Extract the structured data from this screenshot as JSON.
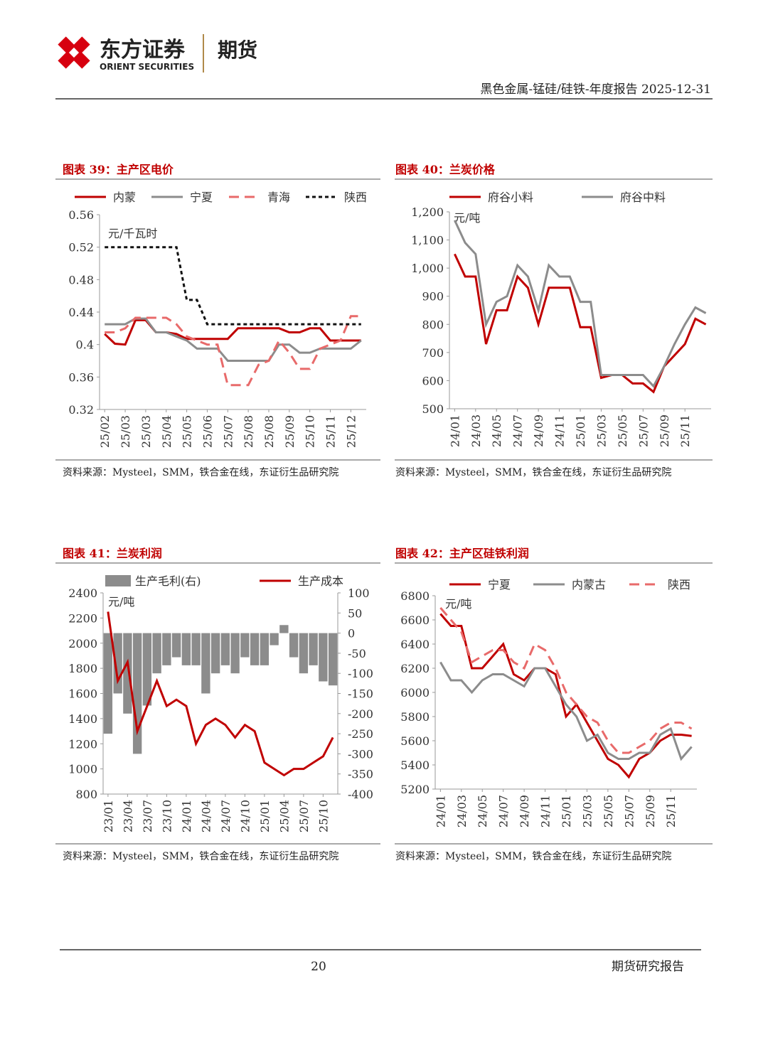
{
  "header": {
    "brand": "东方证券",
    "brand_en": "ORIENT SECURITIES",
    "unit": "期货",
    "report": "黑色金属-锰硅/硅铁-年度报告 2025-12-31"
  },
  "chart_data": [
    {
      "type": "line",
      "title": "图表 39：主产区电价",
      "source": "资料来源：Mysteel，SMM，铁合金在线，东证衍生品研究院",
      "y_unit": "元/千瓦时",
      "categories": [
        "25/02",
        null,
        "25/03",
        null,
        "25/03",
        null,
        "25/04",
        null,
        "25/05",
        null,
        "25/06",
        null,
        "25/07",
        null,
        "25/08",
        null,
        "25/08",
        null,
        "25/09",
        null,
        "25/10",
        null,
        "25/11",
        null,
        "25/12",
        null
      ],
      "ylim": [
        0.32,
        0.56
      ],
      "yticks": [
        0.32,
        0.36,
        0.4,
        0.44,
        0.48,
        0.52,
        0.56
      ],
      "series": [
        {
          "name": "内蒙",
          "color": "#c00000",
          "line_style": "solid",
          "values": [
            0.413,
            0.401,
            0.4,
            0.43,
            0.43,
            0.415,
            0.415,
            0.413,
            0.407,
            0.407,
            0.407,
            0.407,
            0.407,
            0.42,
            0.42,
            0.42,
            0.42,
            0.42,
            0.415,
            0.415,
            0.42,
            0.42,
            0.405,
            0.405,
            0.405,
            0.405
          ]
        },
        {
          "name": "宁夏",
          "color": "#8c8c8c",
          "line_style": "solid",
          "values": [
            0.425,
            0.425,
            0.425,
            0.432,
            0.432,
            0.415,
            0.415,
            0.41,
            0.405,
            0.395,
            0.395,
            0.395,
            0.38,
            0.38,
            0.38,
            0.38,
            0.38,
            0.4,
            0.4,
            0.39,
            0.39,
            0.395,
            0.395,
            0.395,
            0.395,
            0.405
          ]
        },
        {
          "name": "青海",
          "color": "#e86a6a",
          "line_style": "dashed",
          "values": [
            0.415,
            0.415,
            0.42,
            0.433,
            0.433,
            0.433,
            0.433,
            0.425,
            0.41,
            0.405,
            0.4,
            0.4,
            0.35,
            0.35,
            0.35,
            0.375,
            0.38,
            0.405,
            0.39,
            0.37,
            0.37,
            0.395,
            0.4,
            0.405,
            0.435,
            0.435
          ]
        },
        {
          "name": "陕西",
          "color": "#111111",
          "line_style": "dotted",
          "values": [
            0.52,
            0.52,
            0.52,
            0.52,
            0.52,
            0.52,
            0.52,
            0.52,
            0.455,
            0.455,
            0.425,
            0.425,
            0.425,
            0.425,
            0.425,
            0.425,
            0.425,
            0.425,
            0.425,
            0.425,
            0.425,
            0.425,
            0.425,
            0.425,
            0.425,
            0.425
          ]
        }
      ]
    },
    {
      "type": "line",
      "title": "图表 40：兰炭价格",
      "source": "资料来源：Mysteel，SMM，铁合金在线，东证衍生品研究院",
      "y_unit": "元/吨",
      "categories": [
        "24/01",
        null,
        "24/03",
        null,
        "24/05",
        null,
        "24/07",
        null,
        "24/09",
        null,
        "24/11",
        null,
        "25/01",
        null,
        "25/03",
        null,
        "25/05",
        null,
        "25/07",
        null,
        "25/09",
        null,
        "25/11",
        null,
        null
      ],
      "ylim": [
        500,
        1200
      ],
      "yticks": [
        500,
        600,
        700,
        800,
        900,
        {
          "value": 1000,
          "label": "1,000"
        },
        {
          "value": 1100,
          "label": "1,100"
        },
        {
          "value": 1200,
          "label": "1,200"
        }
      ],
      "series": [
        {
          "name": "府谷小料",
          "color": "#c00000",
          "line_style": "solid",
          "values": [
            1050,
            970,
            970,
            730,
            850,
            850,
            970,
            930,
            800,
            930,
            930,
            930,
            790,
            790,
            610,
            620,
            620,
            590,
            590,
            560,
            650,
            690,
            730,
            820,
            800
          ]
        },
        {
          "name": "府谷中料",
          "color": "#8c8c8c",
          "line_style": "solid",
          "values": [
            1170,
            1090,
            1050,
            800,
            880,
            900,
            1010,
            970,
            850,
            1010,
            970,
            970,
            880,
            880,
            620,
            620,
            620,
            620,
            620,
            580,
            650,
            730,
            800,
            860,
            840
          ]
        }
      ]
    },
    {
      "type": "line",
      "title": "图表 41：兰炭利润",
      "source": "资料来源：Mysteel，SMM，铁合金在线，东证衍生品研究院",
      "y_unit": "元/吨",
      "categories": [
        "23/01",
        null,
        "23/04",
        null,
        "23/07",
        null,
        "23/10",
        null,
        "24/01",
        null,
        "24/04",
        null,
        "24/07",
        null,
        "24/10",
        null,
        "25/01",
        null,
        "25/04",
        null,
        "25/07",
        null,
        "25/10",
        null
      ],
      "ylim": [
        800,
        2400
      ],
      "yticks": [
        800,
        1000,
        1200,
        1400,
        1600,
        1800,
        2000,
        2200,
        2400
      ],
      "y2lim": [
        -400,
        100
      ],
      "y2ticks": [
        -400,
        -350,
        -300,
        -250,
        -200,
        -150,
        -100,
        -50,
        0,
        50,
        100
      ],
      "series": [
        {
          "name": "生产毛利(右)",
          "color": "#8c8c8c",
          "type": "bar",
          "axis": "y2",
          "values": [
            -250,
            -150,
            -200,
            -300,
            -180,
            -100,
            -80,
            -60,
            -80,
            -80,
            -150,
            -100,
            -80,
            -100,
            -60,
            -80,
            -80,
            -30,
            20,
            -60,
            -100,
            -80,
            -120,
            -130
          ]
        },
        {
          "name": "生产成本",
          "color": "#c00000",
          "line_style": "solid",
          "values": [
            2250,
            1700,
            1850,
            1300,
            1500,
            1700,
            1500,
            1550,
            1500,
            1200,
            1350,
            1400,
            1350,
            1250,
            1350,
            1300,
            1050,
            1000,
            950,
            1000,
            1000,
            1050,
            1100,
            1250
          ]
        }
      ]
    },
    {
      "type": "line",
      "title": "图表 42：主产区硅铁利润",
      "source": "资料来源：Mysteel，SMM，铁合金在线，东证衍生品研究院",
      "y_unit": "元/吨",
      "categories": [
        "24/01",
        null,
        "24/03",
        null,
        "24/05",
        null,
        "24/07",
        null,
        "24/09",
        null,
        "24/11",
        null,
        "25/01",
        null,
        "25/03",
        null,
        "25/05",
        null,
        "25/07",
        null,
        "25/09",
        null,
        "25/11",
        null,
        null
      ],
      "ylim": [
        5200,
        6800
      ],
      "yticks": [
        5200,
        5400,
        5600,
        5800,
        6000,
        6200,
        6400,
        6600,
        6800
      ],
      "series": [
        {
          "name": "宁夏",
          "color": "#c00000",
          "line_style": "solid",
          "values": [
            6650,
            6550,
            6550,
            6200,
            6200,
            6300,
            6400,
            6150,
            6100,
            6200,
            6200,
            6150,
            5800,
            5900,
            5750,
            5600,
            5450,
            5400,
            5300,
            5450,
            5500,
            5600,
            5650,
            5650,
            5640
          ]
        },
        {
          "name": "内蒙古",
          "color": "#8c8c8c",
          "line_style": "solid",
          "values": [
            6250,
            6100,
            6100,
            6000,
            6100,
            6150,
            6150,
            6100,
            6050,
            6200,
            6200,
            6050,
            5900,
            5800,
            5600,
            5650,
            5500,
            5450,
            5450,
            5500,
            5500,
            5650,
            5700,
            5450,
            5550
          ]
        },
        {
          "name": "陕西",
          "color": "#e86a6a",
          "line_style": "dashed",
          "values": [
            6700,
            6600,
            6500,
            6250,
            6300,
            6350,
            6350,
            6250,
            6200,
            6400,
            6350,
            6200,
            6000,
            5900,
            5800,
            5750,
            5600,
            5500,
            5500,
            5550,
            5600,
            5700,
            5750,
            5750,
            5700
          ]
        }
      ]
    }
  ],
  "footer": {
    "page": "20",
    "label": "期货研究报告"
  }
}
